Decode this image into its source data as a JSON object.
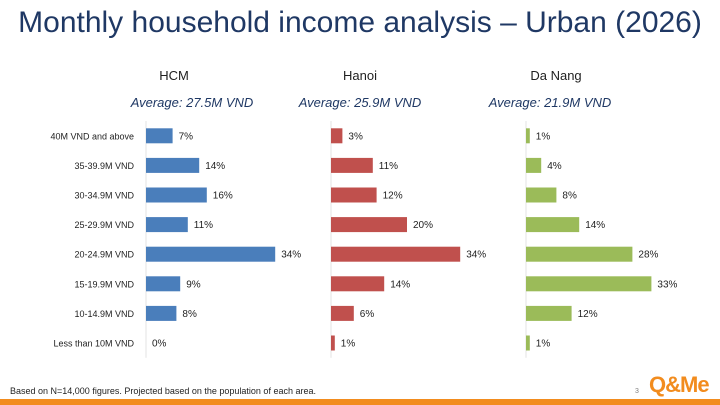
{
  "title": "Monthly household income analysis – Urban (2026)",
  "footnote": "Based on N=14,000 figures. Projected based on the population of each area.",
  "page_number": "3",
  "logo_text": "Q&Me",
  "chart_data": {
    "type": "bar",
    "orientation": "horizontal",
    "categories": [
      "40M VND and above",
      "35-39.9M VND",
      "30-34.9M VND",
      "25-29.9M VND",
      "20-24.9M VND",
      "15-19.9M VND",
      "10-14.9M VND",
      "Less than 10M VND"
    ],
    "series": [
      {
        "name": "HCM",
        "average": "Average: 27.5M VND",
        "color": "#4a7ebb",
        "values": [
          7,
          14,
          16,
          11,
          34,
          9,
          8,
          0
        ],
        "labels": [
          "7%",
          "14%",
          "16%",
          "11%",
          "34%",
          "9%",
          "8%",
          "0%"
        ]
      },
      {
        "name": "Hanoi",
        "average": "Average: 25.9M VND",
        "color": "#c0504d",
        "values": [
          3,
          11,
          12,
          20,
          34,
          14,
          6,
          1
        ],
        "labels": [
          "3%",
          "11%",
          "12%",
          "20%",
          "34%",
          "14%",
          "6%",
          "1%"
        ]
      },
      {
        "name": "Da Nang",
        "average": "Average: 21.9M VND",
        "color": "#9bbb59",
        "values": [
          1,
          4,
          8,
          14,
          28,
          33,
          12,
          1
        ],
        "labels": [
          "1%",
          "4%",
          "8%",
          "14%",
          "28%",
          "33%",
          "12%",
          "1%"
        ]
      }
    ],
    "unit": "%"
  }
}
